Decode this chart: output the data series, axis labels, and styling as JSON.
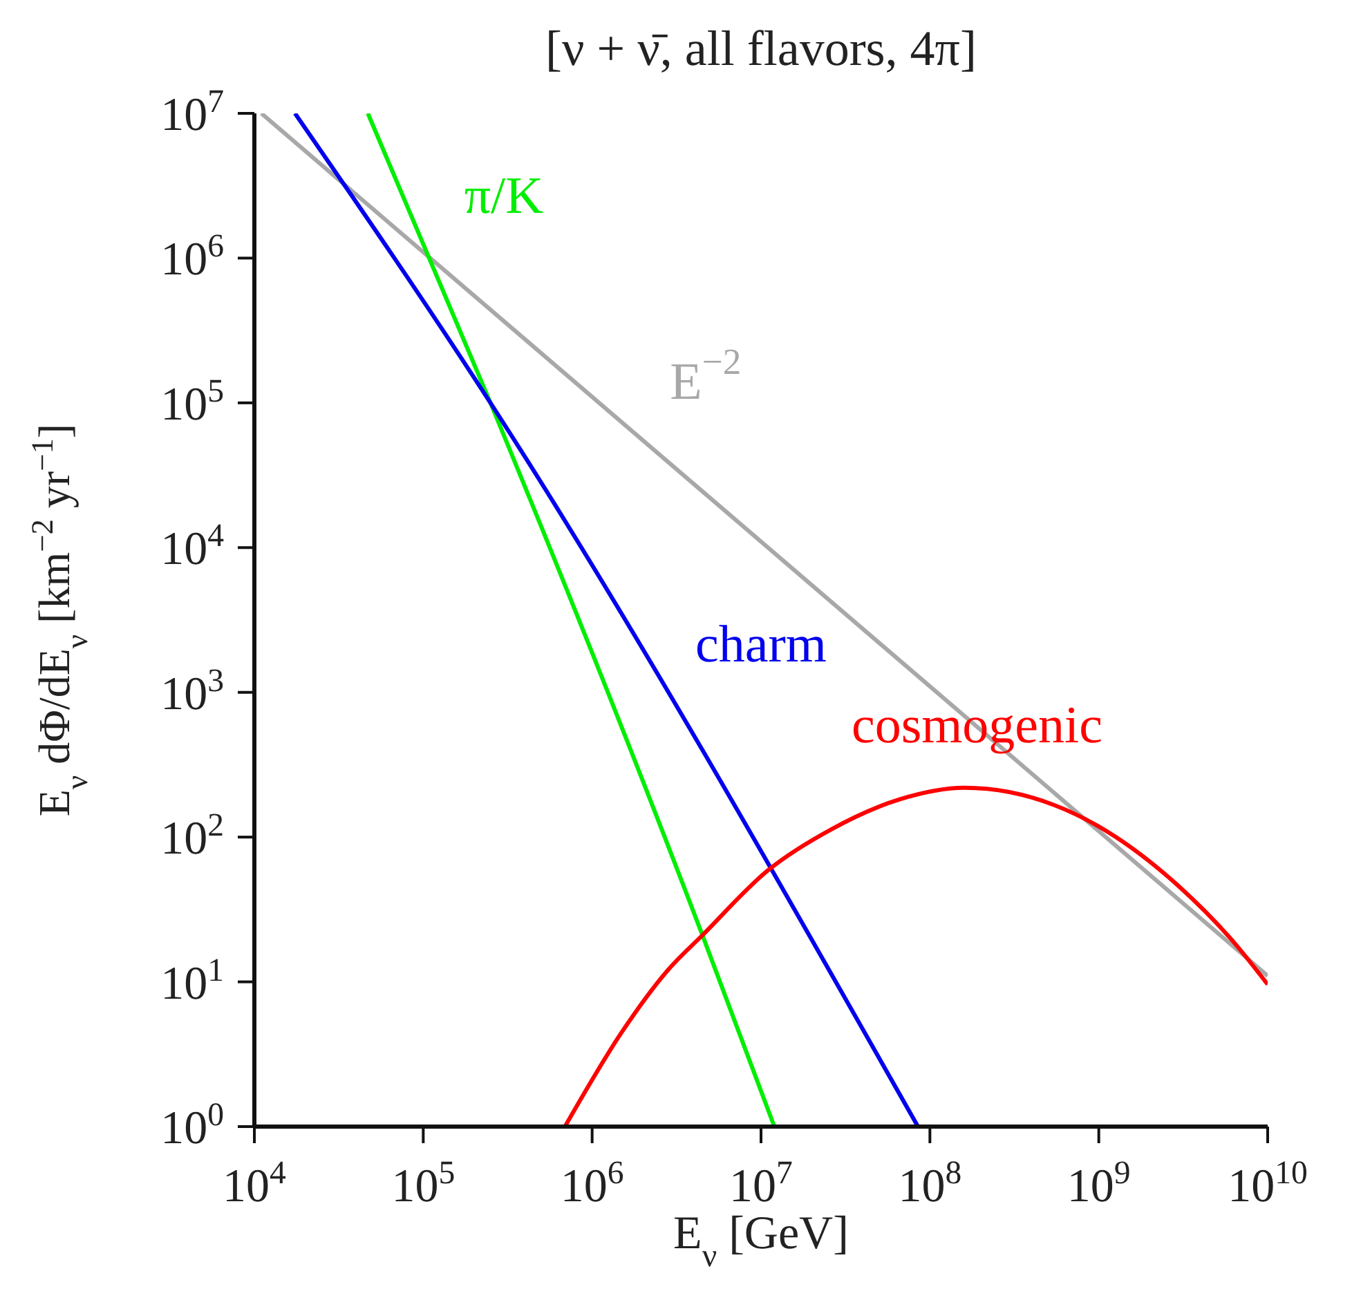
{
  "chart_data": {
    "type": "line",
    "title": "[ν + ν̄, all flavors, 4π]",
    "xlabel": "E$_{ν}$ [GeV]",
    "ylabel": "E$_{ν}$ dΦ/dE$_{ν}$ [km$^{−2}$ yr$^{−1}$]",
    "log": "xy",
    "marker": "none",
    "line_style": "solid",
    "xlim": [
      10000,
      10000000000
    ],
    "ylim": [
      1,
      10000000
    ],
    "xticks": [
      {
        "value": 10000,
        "label": "10$^{4}$"
      },
      {
        "value": 100000,
        "label": "10$^{5}$"
      },
      {
        "value": 1000000,
        "label": "10$^{6}$"
      },
      {
        "value": 10000000,
        "label": "10$^{7}$"
      },
      {
        "value": 100000000,
        "label": "10$^{8}$"
      },
      {
        "value": 1000000000,
        "label": "10$^{9}$"
      },
      {
        "value": 10000000000,
        "label": "10$^{10}$"
      }
    ],
    "yticks": [
      {
        "value": 1,
        "label": "10$^{0}$"
      },
      {
        "value": 10,
        "label": "10$^{1}$"
      },
      {
        "value": 100,
        "label": "10$^{2}$"
      },
      {
        "value": 1000,
        "label": "10$^{3}$"
      },
      {
        "value": 10000,
        "label": "10$^{4}$"
      },
      {
        "value": 100000,
        "label": "10$^{5}$"
      },
      {
        "value": 1000000,
        "label": "10$^{6}$"
      },
      {
        "value": 10000000,
        "label": "10$^{7}$"
      }
    ],
    "series": [
      {
        "name": "E$^{−2}$",
        "color": "#a8a8a8",
        "x": [
          11000,
          10000000000
        ],
        "values": [
          10000000,
          11
        ]
      },
      {
        "name": "π/K",
        "color": "#00ee00",
        "x": [
          47000,
          250000,
          4500000,
          12000000
        ],
        "values": [
          10000000,
          100000,
          21,
          1
        ]
      },
      {
        "name": "charm",
        "color": "#0000ee",
        "x": [
          17400,
          250000,
          85000000
        ],
        "values": [
          10000000,
          100000,
          1
        ]
      },
      {
        "name": "cosmogenic",
        "color": "#ff0000",
        "x": [
          690000,
          1500000,
          2800000,
          4500000,
          11000000,
          26000000,
          66000000,
          160000000,
          980000000,
          2900000000,
          6500000000,
          10000000000
        ],
        "values": [
          1,
          4.5,
          12,
          21,
          59,
          113,
          182,
          219,
          120,
          47,
          18,
          9.6
        ]
      }
    ]
  }
}
